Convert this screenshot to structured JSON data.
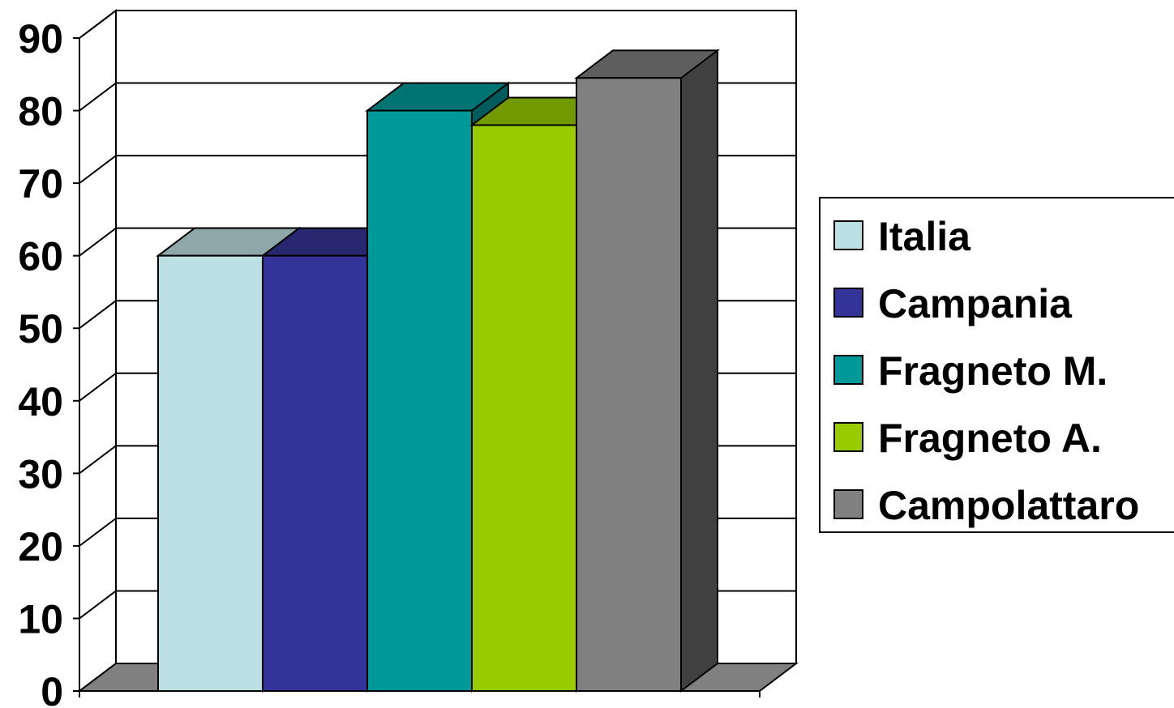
{
  "chart_data": {
    "type": "bar",
    "style": "3d-clustered",
    "series": [
      {
        "name": "Italia",
        "values": [
          60
        ],
        "color": "#BBE0E3",
        "top": "#8EA7A9",
        "side": "#7C9294"
      },
      {
        "name": "Campania",
        "values": [
          60
        ],
        "color": "#333399",
        "top": "#27286F",
        "side": "#1F2058"
      },
      {
        "name": "Fragneto M.",
        "values": [
          80
        ],
        "color": "#009999",
        "top": "#007373",
        "side": "#005C5C"
      },
      {
        "name": "Fragneto A.",
        "values": [
          78
        ],
        "color": "#99CC00",
        "top": "#739900",
        "side": "#5C7A00"
      },
      {
        "name": "Campolattaro",
        "values": [
          84.5
        ],
        "color": "#808080",
        "top": "#5E5E5E",
        "side": "#404040"
      }
    ],
    "yticks": [
      "0",
      "10",
      "20",
      "30",
      "40",
      "50",
      "60",
      "70",
      "80",
      "90"
    ],
    "ylim": [
      0,
      90
    ],
    "grid": true,
    "legend_position": "right",
    "floor_color": "#808080"
  }
}
